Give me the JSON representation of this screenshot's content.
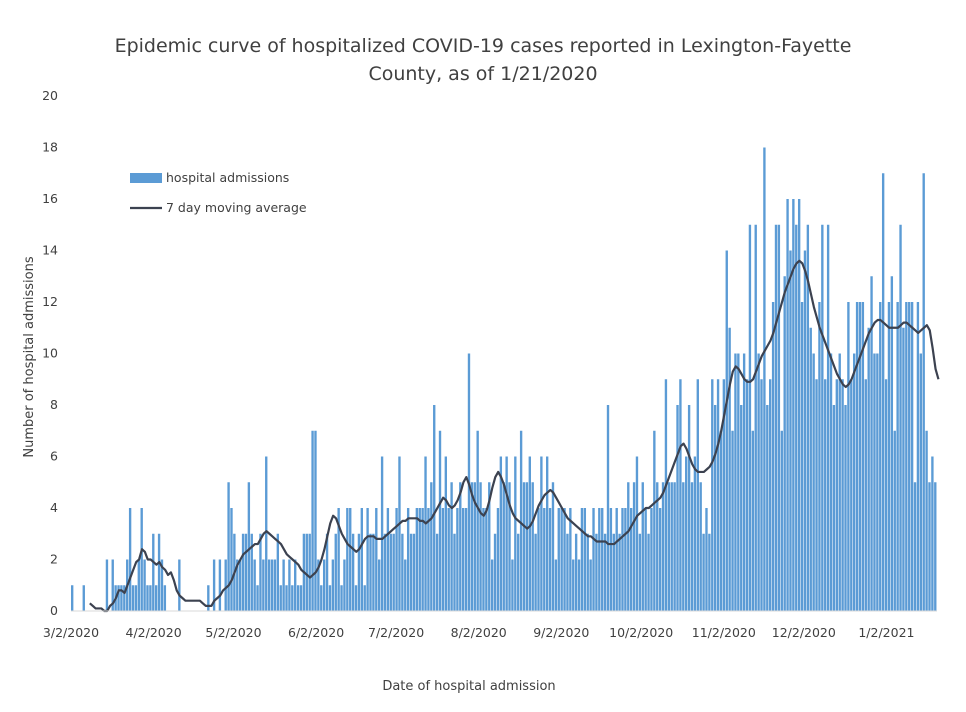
{
  "chart_data": {
    "type": "bar",
    "title": "Epidemic curve of hospitalized COVID-19 cases reported in Lexington-Fayette County, as of 1/21/2020",
    "title_lines": [
      "Epidemic curve of hospitalized COVID-19 cases reported in Lexington-Fayette",
      "County, as of 1/21/2020"
    ],
    "xlabel": "Date of hospital admission",
    "ylabel": "Number of hospital admissions",
    "ylim": [
      0,
      20
    ],
    "y_ticks": [
      0,
      2,
      4,
      6,
      8,
      10,
      12,
      14,
      16,
      18,
      20
    ],
    "x_tick_labels": [
      "3/2/2020",
      "4/2/2020",
      "5/2/2020",
      "6/2/2020",
      "7/2/2020",
      "8/2/2020",
      "9/2/2020",
      "10/2/2020",
      "11/2/2020",
      "12/2/2020",
      "1/2/2021"
    ],
    "x_range": [
      "2020-03-02",
      "2021-01-21"
    ],
    "grid": false,
    "legend_position": "upper-left",
    "series": [
      {
        "name": "hospital admissions",
        "kind": "bar",
        "color": "#5B9BD5",
        "values": [
          1,
          0,
          0,
          0,
          1,
          0,
          0,
          0,
          0,
          0,
          0,
          0,
          2,
          0,
          2,
          1,
          1,
          1,
          1,
          2,
          4,
          1,
          1,
          2,
          4,
          2,
          1,
          1,
          3,
          1,
          3,
          2,
          1,
          0,
          0,
          0,
          0,
          2,
          0,
          0,
          0,
          0,
          0,
          0,
          0,
          0,
          0,
          1,
          0,
          2,
          0,
          2,
          0,
          2,
          5,
          4,
          3,
          2,
          2,
          3,
          3,
          5,
          3,
          2,
          1,
          3,
          2,
          6,
          2,
          2,
          2,
          3,
          1,
          2,
          1,
          2,
          1,
          2,
          1,
          1,
          3,
          3,
          3,
          7,
          7,
          2,
          1,
          2,
          3,
          1,
          2,
          3,
          4,
          1,
          2,
          4,
          4,
          3,
          1,
          3,
          4,
          1,
          4,
          3,
          3,
          4,
          2,
          6,
          3,
          4,
          3,
          3,
          4,
          6,
          3,
          2,
          4,
          3,
          3,
          4,
          4,
          4,
          6,
          4,
          5,
          8,
          3,
          7,
          4,
          6,
          4,
          5,
          3,
          4,
          5,
          4,
          4,
          10,
          5,
          5,
          7,
          5,
          4,
          4,
          5,
          2,
          3,
          4,
          6,
          5,
          6,
          5,
          2,
          6,
          3,
          7,
          5,
          5,
          6,
          5,
          3,
          4,
          6,
          4,
          6,
          4,
          5,
          2,
          4,
          4,
          4,
          3,
          4,
          2,
          3,
          2,
          4,
          4,
          3,
          2,
          4,
          3,
          4,
          4,
          3,
          8,
          4,
          3,
          4,
          3,
          4,
          4,
          5,
          4,
          5,
          6,
          3,
          5,
          4,
          3,
          4,
          7,
          5,
          4,
          5,
          9,
          5,
          5,
          5,
          8,
          9,
          5,
          6,
          8,
          5,
          6,
          9,
          5,
          3,
          4,
          3,
          9,
          8,
          9,
          7,
          9,
          14,
          11,
          7,
          10,
          10,
          8,
          10,
          9,
          15,
          7,
          15,
          10,
          9,
          18,
          8,
          9,
          12,
          15,
          15,
          7,
          13,
          16,
          14,
          16,
          15,
          16,
          12,
          14,
          15,
          11,
          10,
          9,
          12,
          15,
          9,
          15,
          10,
          8,
          9,
          10,
          9,
          8,
          12,
          9,
          10,
          12,
          12,
          12,
          9,
          11,
          13,
          10,
          10,
          12,
          17,
          9,
          12,
          13,
          7,
          12,
          15,
          11,
          12,
          12,
          12,
          5,
          12,
          10,
          17,
          7,
          5,
          6,
          5
        ]
      },
      {
        "name": "7 day moving average",
        "kind": "line",
        "color": "#3C4250",
        "values": [
          0.3,
          0.2,
          0.1,
          0.1,
          0.1,
          0.0,
          0.0,
          0.2,
          0.3,
          0.5,
          0.8,
          0.8,
          0.7,
          1.0,
          1.3,
          1.6,
          1.9,
          2.0,
          2.4,
          2.3,
          2.0,
          2.0,
          1.9,
          1.8,
          1.9,
          1.7,
          1.6,
          1.4,
          1.5,
          1.2,
          0.8,
          0.6,
          0.5,
          0.4,
          0.4,
          0.4,
          0.4,
          0.4,
          0.4,
          0.3,
          0.2,
          0.2,
          0.2,
          0.4,
          0.5,
          0.6,
          0.8,
          0.9,
          1.0,
          1.2,
          1.5,
          1.8,
          2.0,
          2.2,
          2.3,
          2.4,
          2.5,
          2.6,
          2.6,
          2.8,
          3.0,
          3.1,
          3.0,
          2.9,
          2.8,
          2.7,
          2.6,
          2.4,
          2.2,
          2.1,
          2.0,
          1.9,
          1.8,
          1.6,
          1.5,
          1.4,
          1.3,
          1.4,
          1.5,
          1.7,
          2.0,
          2.4,
          2.9,
          3.4,
          3.7,
          3.6,
          3.3,
          3.0,
          2.8,
          2.6,
          2.5,
          2.4,
          2.3,
          2.4,
          2.6,
          2.8,
          2.9,
          2.9,
          2.9,
          2.8,
          2.8,
          2.8,
          2.9,
          3.0,
          3.1,
          3.2,
          3.3,
          3.4,
          3.5,
          3.5,
          3.6,
          3.6,
          3.6,
          3.6,
          3.5,
          3.5,
          3.4,
          3.5,
          3.6,
          3.8,
          4.0,
          4.2,
          4.4,
          4.3,
          4.1,
          4.0,
          4.1,
          4.3,
          4.6,
          5.0,
          5.2,
          4.9,
          4.5,
          4.2,
          4.0,
          3.8,
          3.7,
          3.9,
          4.3,
          4.8,
          5.2,
          5.4,
          5.2,
          4.9,
          4.5,
          4.1,
          3.8,
          3.6,
          3.5,
          3.4,
          3.3,
          3.2,
          3.3,
          3.5,
          3.8,
          4.1,
          4.3,
          4.5,
          4.6,
          4.7,
          4.6,
          4.4,
          4.2,
          4.0,
          3.8,
          3.6,
          3.5,
          3.4,
          3.3,
          3.2,
          3.1,
          3.0,
          2.9,
          2.9,
          2.8,
          2.7,
          2.7,
          2.7,
          2.7,
          2.6,
          2.6,
          2.6,
          2.7,
          2.8,
          2.9,
          3.0,
          3.1,
          3.3,
          3.5,
          3.7,
          3.8,
          3.9,
          4.0,
          4.0,
          4.1,
          4.2,
          4.3,
          4.4,
          4.6,
          4.9,
          5.2,
          5.5,
          5.8,
          6.1,
          6.4,
          6.5,
          6.3,
          6.0,
          5.7,
          5.5,
          5.4,
          5.4,
          5.4,
          5.5,
          5.6,
          5.8,
          6.1,
          6.5,
          7.0,
          7.6,
          8.2,
          8.8,
          9.3,
          9.5,
          9.4,
          9.2,
          9.0,
          8.9,
          8.9,
          9.0,
          9.3,
          9.6,
          9.9,
          10.1,
          10.3,
          10.5,
          10.8,
          11.2,
          11.6,
          12.0,
          12.4,
          12.7,
          13.0,
          13.3,
          13.5,
          13.6,
          13.5,
          13.2,
          12.8,
          12.3,
          11.8,
          11.4,
          11.0,
          10.7,
          10.4,
          10.1,
          9.8,
          9.5,
          9.2,
          9.0,
          8.8,
          8.7,
          8.8,
          9.0,
          9.3,
          9.6,
          9.9,
          10.2,
          10.5,
          10.8,
          11.0,
          11.2,
          11.3,
          11.3,
          11.2,
          11.1,
          11.0,
          11.0,
          11.0,
          11.0,
          11.1,
          11.2,
          11.2,
          11.1,
          11.0,
          10.9,
          10.8,
          10.9,
          11.0,
          11.1,
          10.9,
          10.2,
          9.4,
          9.0
        ]
      }
    ]
  }
}
